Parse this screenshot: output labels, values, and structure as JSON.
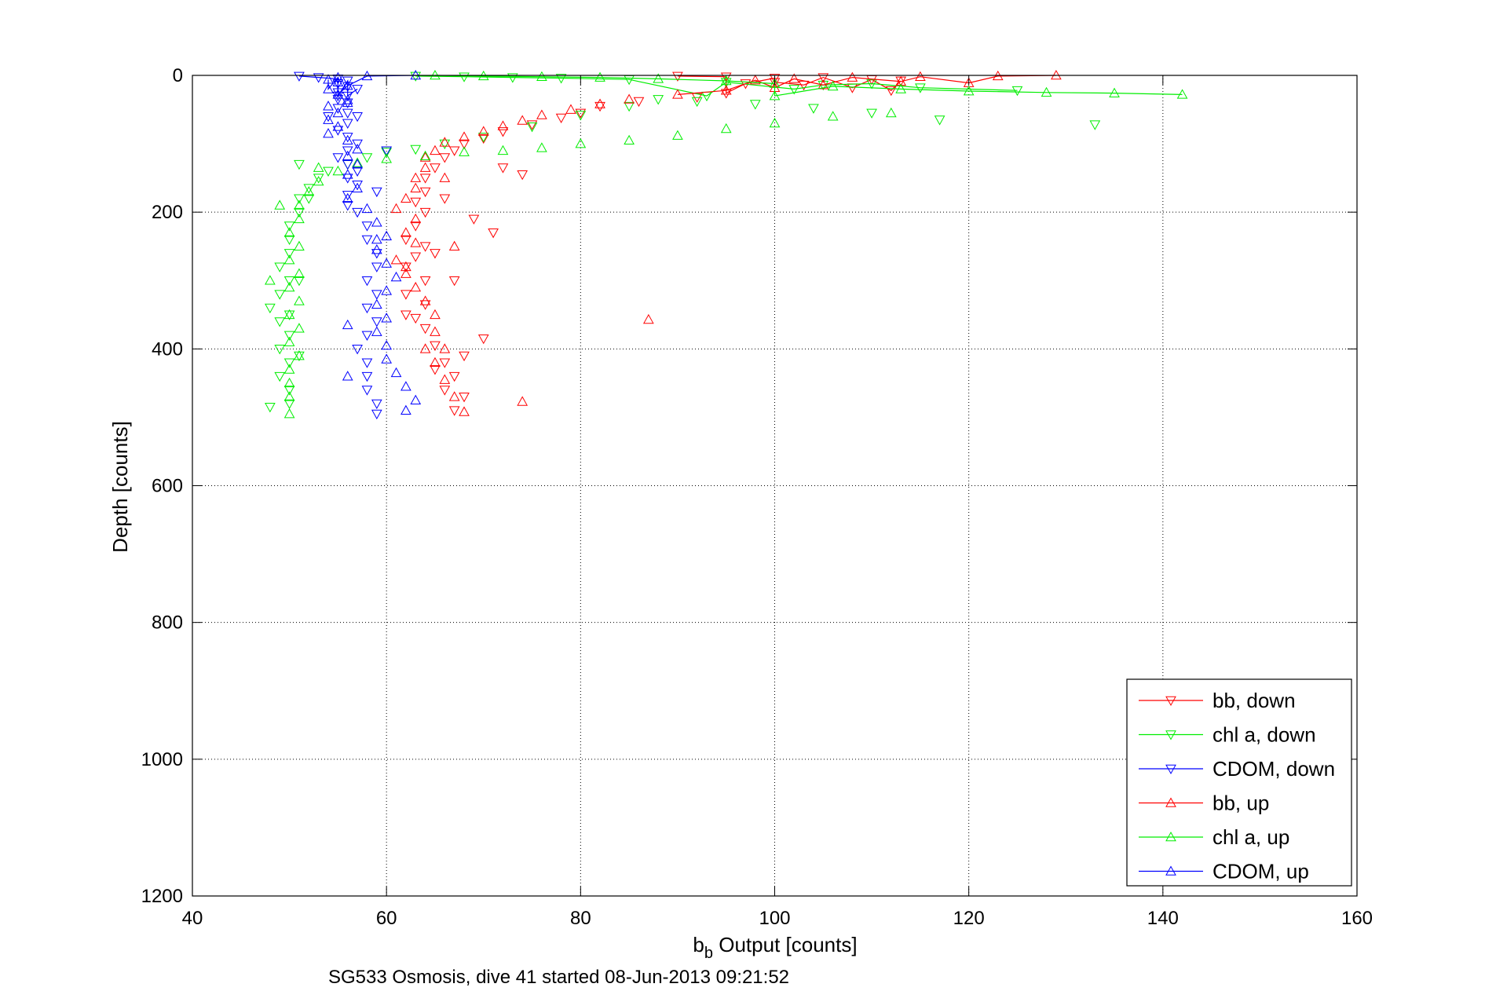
{
  "chart_data": {
    "type": "scatter",
    "title": "",
    "xlabel_main": "b",
    "xlabel_sub": "b",
    "xlabel_rest": " Output [counts]",
    "ylabel": "Depth [counts]",
    "caption": "SG533 Osmosis, dive 41 started 08-Jun-2013 09:21:52",
    "xlim": [
      40,
      160
    ],
    "ylim": [
      0,
      1200
    ],
    "y_reversed": true,
    "grid": true,
    "legend_position": "bottom-right",
    "x_ticks": [
      "40",
      "60",
      "80",
      "100",
      "120",
      "140",
      "160"
    ],
    "y_ticks": [
      "0",
      "200",
      "400",
      "600",
      "800",
      "1000",
      "1200"
    ],
    "series": [
      {
        "name": "bb, down",
        "color": "#ff0000",
        "marker": "triangle-down",
        "points": [
          [
            90,
            1
          ],
          [
            95,
            2
          ],
          [
            100,
            4
          ],
          [
            105,
            3
          ],
          [
            110,
            6
          ],
          [
            113,
            8
          ],
          [
            100,
            10
          ],
          [
            97,
            12
          ],
          [
            103,
            14
          ],
          [
            108,
            18
          ],
          [
            112,
            22
          ],
          [
            95,
            26
          ],
          [
            92,
            32
          ],
          [
            86,
            38
          ],
          [
            82,
            45
          ],
          [
            80,
            55
          ],
          [
            78,
            62
          ],
          [
            75,
            72
          ],
          [
            72,
            82
          ],
          [
            70,
            92
          ],
          [
            68,
            100
          ],
          [
            67,
            110
          ],
          [
            66,
            120
          ],
          [
            65,
            135
          ],
          [
            64,
            150
          ],
          [
            64,
            170
          ],
          [
            63,
            185
          ],
          [
            64,
            200
          ],
          [
            63,
            220
          ],
          [
            62,
            240
          ],
          [
            64,
            250
          ],
          [
            63,
            265
          ],
          [
            62,
            280
          ],
          [
            64,
            300
          ],
          [
            62,
            320
          ],
          [
            64,
            335
          ],
          [
            63,
            355
          ],
          [
            64,
            370
          ],
          [
            65,
            395
          ],
          [
            66,
            420
          ],
          [
            67,
            440
          ],
          [
            66,
            460
          ],
          [
            67,
            490
          ],
          [
            68,
            470
          ],
          [
            70,
            385
          ],
          [
            71,
            230
          ],
          [
            69,
            210
          ],
          [
            74,
            145
          ],
          [
            72,
            135
          ],
          [
            66,
            180
          ],
          [
            65,
            260
          ],
          [
            67,
            300
          ],
          [
            68,
            410
          ],
          [
            65,
            430
          ],
          [
            62,
            350
          ]
        ]
      },
      {
        "name": "chl a, down",
        "color": "#00ee00",
        "marker": "triangle-down",
        "points": [
          [
            63,
            1
          ],
          [
            68,
            2
          ],
          [
            73,
            3
          ],
          [
            78,
            4
          ],
          [
            85,
            6
          ],
          [
            95,
            10
          ],
          [
            105,
            14
          ],
          [
            115,
            18
          ],
          [
            125,
            22
          ],
          [
            133,
            72
          ],
          [
            117,
            65
          ],
          [
            110,
            55
          ],
          [
            104,
            48
          ],
          [
            98,
            42
          ],
          [
            92,
            38
          ],
          [
            88,
            35
          ],
          [
            85,
            45
          ],
          [
            80,
            58
          ],
          [
            75,
            75
          ],
          [
            70,
            90
          ],
          [
            66,
            100
          ],
          [
            63,
            108
          ],
          [
            60,
            112
          ],
          [
            58,
            120
          ],
          [
            56,
            130
          ],
          [
            54,
            140
          ],
          [
            53,
            150
          ],
          [
            52,
            165
          ],
          [
            51,
            180
          ],
          [
            51,
            200
          ],
          [
            50,
            220
          ],
          [
            50,
            240
          ],
          [
            50,
            260
          ],
          [
            49,
            280
          ],
          [
            50,
            300
          ],
          [
            49,
            320
          ],
          [
            48,
            340
          ],
          [
            49,
            360
          ],
          [
            50,
            380
          ],
          [
            49,
            400
          ],
          [
            50,
            420
          ],
          [
            49,
            440
          ],
          [
            50,
            460
          ],
          [
            50,
            480
          ],
          [
            48,
            485
          ],
          [
            51,
            410
          ],
          [
            51,
            300
          ],
          [
            50,
            350
          ],
          [
            51,
            130
          ],
          [
            52,
            180
          ],
          [
            93,
            30
          ],
          [
            102,
            20
          ],
          [
            110,
            12
          ]
        ]
      },
      {
        "name": "CDOM, down",
        "color": "#0000ff",
        "marker": "triangle-down",
        "points": [
          [
            51,
            1
          ],
          [
            53,
            3
          ],
          [
            55,
            5
          ],
          [
            56,
            8
          ],
          [
            55,
            12
          ],
          [
            56,
            16
          ],
          [
            57,
            20
          ],
          [
            55,
            25
          ],
          [
            56,
            30
          ],
          [
            55,
            35
          ],
          [
            56,
            40
          ],
          [
            55,
            48
          ],
          [
            56,
            55
          ],
          [
            57,
            60
          ],
          [
            56,
            70
          ],
          [
            55,
            80
          ],
          [
            56,
            90
          ],
          [
            57,
            100
          ],
          [
            56,
            110
          ],
          [
            55,
            120
          ],
          [
            56,
            130
          ],
          [
            57,
            140
          ],
          [
            56,
            150
          ],
          [
            57,
            160
          ],
          [
            56,
            175
          ],
          [
            56,
            190
          ],
          [
            57,
            200
          ],
          [
            58,
            220
          ],
          [
            58,
            240
          ],
          [
            59,
            260
          ],
          [
            59,
            280
          ],
          [
            58,
            300
          ],
          [
            59,
            320
          ],
          [
            58,
            340
          ],
          [
            59,
            360
          ],
          [
            58,
            380
          ],
          [
            57,
            400
          ],
          [
            58,
            420
          ],
          [
            58,
            440
          ],
          [
            58,
            460
          ],
          [
            59,
            480
          ],
          [
            59,
            495
          ],
          [
            55,
            30
          ],
          [
            54,
            60
          ],
          [
            60,
            110
          ],
          [
            59,
            170
          ]
        ]
      },
      {
        "name": "bb, up",
        "color": "#ff0000",
        "marker": "triangle-up",
        "points": [
          [
            129,
            0
          ],
          [
            123,
            1
          ],
          [
            115,
            2
          ],
          [
            108,
            3
          ],
          [
            102,
            5
          ],
          [
            98,
            7
          ],
          [
            113,
            9
          ],
          [
            120,
            11
          ],
          [
            105,
            14
          ],
          [
            100,
            18
          ],
          [
            95,
            22
          ],
          [
            90,
            28
          ],
          [
            85,
            35
          ],
          [
            82,
            42
          ],
          [
            79,
            50
          ],
          [
            76,
            58
          ],
          [
            74,
            66
          ],
          [
            72,
            74
          ],
          [
            70,
            82
          ],
          [
            68,
            90
          ],
          [
            66,
            98
          ],
          [
            65,
            110
          ],
          [
            64,
            120
          ],
          [
            64,
            135
          ],
          [
            63,
            150
          ],
          [
            63,
            165
          ],
          [
            62,
            180
          ],
          [
            61,
            195
          ],
          [
            63,
            210
          ],
          [
            62,
            230
          ],
          [
            63,
            245
          ],
          [
            61,
            270
          ],
          [
            62,
            290
          ],
          [
            63,
            310
          ],
          [
            64,
            330
          ],
          [
            65,
            350
          ],
          [
            65,
            375
          ],
          [
            66,
            400
          ],
          [
            65,
            420
          ],
          [
            66,
            445
          ],
          [
            67,
            470
          ],
          [
            68,
            492
          ],
          [
            74,
            477
          ],
          [
            87,
            357
          ],
          [
            67,
            250
          ],
          [
            66,
            150
          ],
          [
            62,
            280
          ],
          [
            64,
            400
          ]
        ]
      },
      {
        "name": "chl a, up",
        "color": "#00ee00",
        "marker": "triangle-up",
        "points": [
          [
            65,
            0
          ],
          [
            70,
            1
          ],
          [
            76,
            2
          ],
          [
            82,
            3
          ],
          [
            88,
            5
          ],
          [
            95,
            8
          ],
          [
            100,
            12
          ],
          [
            106,
            16
          ],
          [
            113,
            20
          ],
          [
            120,
            23
          ],
          [
            128,
            25
          ],
          [
            135,
            26
          ],
          [
            142,
            28
          ],
          [
            112,
            55
          ],
          [
            106,
            60
          ],
          [
            100,
            70
          ],
          [
            95,
            78
          ],
          [
            90,
            88
          ],
          [
            85,
            95
          ],
          [
            80,
            100
          ],
          [
            76,
            106
          ],
          [
            72,
            110
          ],
          [
            68,
            112
          ],
          [
            64,
            118
          ],
          [
            60,
            122
          ],
          [
            57,
            128
          ],
          [
            55,
            140
          ],
          [
            53,
            155
          ],
          [
            52,
            170
          ],
          [
            51,
            190
          ],
          [
            51,
            210
          ],
          [
            50,
            230
          ],
          [
            51,
            250
          ],
          [
            50,
            270
          ],
          [
            51,
            290
          ],
          [
            50,
            310
          ],
          [
            51,
            330
          ],
          [
            50,
            350
          ],
          [
            51,
            370
          ],
          [
            50,
            390
          ],
          [
            51,
            410
          ],
          [
            50,
            430
          ],
          [
            50,
            450
          ],
          [
            50,
            470
          ],
          [
            50,
            495
          ],
          [
            48,
            300
          ],
          [
            49,
            190
          ],
          [
            53,
            135
          ],
          [
            100,
            30
          ]
        ]
      },
      {
        "name": "CDOM, up",
        "color": "#0000ff",
        "marker": "triangle-up",
        "points": [
          [
            63,
            0
          ],
          [
            58,
            1
          ],
          [
            55,
            3
          ],
          [
            54,
            6
          ],
          [
            55,
            10
          ],
          [
            56,
            15
          ],
          [
            54,
            20
          ],
          [
            55,
            28
          ],
          [
            56,
            36
          ],
          [
            54,
            45
          ],
          [
            55,
            55
          ],
          [
            54,
            65
          ],
          [
            55,
            75
          ],
          [
            54,
            85
          ],
          [
            56,
            95
          ],
          [
            57,
            108
          ],
          [
            56,
            118
          ],
          [
            57,
            130
          ],
          [
            56,
            145
          ],
          [
            57,
            165
          ],
          [
            56,
            180
          ],
          [
            58,
            195
          ],
          [
            59,
            215
          ],
          [
            60,
            235
          ],
          [
            59,
            255
          ],
          [
            60,
            275
          ],
          [
            61,
            295
          ],
          [
            60,
            315
          ],
          [
            59,
            335
          ],
          [
            60,
            355
          ],
          [
            59,
            375
          ],
          [
            60,
            395
          ],
          [
            60,
            415
          ],
          [
            61,
            435
          ],
          [
            62,
            455
          ],
          [
            63,
            475
          ],
          [
            62,
            490
          ],
          [
            56,
            440
          ],
          [
            56,
            365
          ],
          [
            59,
            240
          ],
          [
            56,
            40
          ]
        ]
      }
    ]
  }
}
